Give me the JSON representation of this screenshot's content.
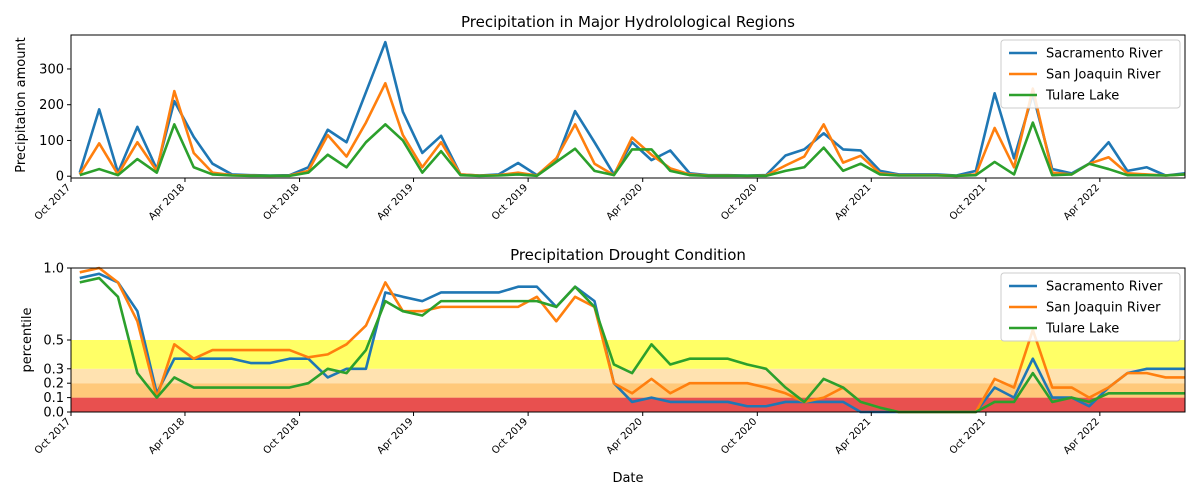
{
  "chart_data": [
    {
      "type": "line",
      "title": "Precipitation in Major Hydrolological Regions",
      "xlabel": "",
      "ylabel": "Precipitation amount",
      "ylim": [
        -5,
        395
      ],
      "xlim": [
        "2017-10-01",
        "2022-08-15"
      ],
      "x_ticks": [
        {
          "date": "2017-10-01",
          "label": "Oct 2017"
        },
        {
          "date": "2018-04-01",
          "label": "Apr 2018"
        },
        {
          "date": "2018-10-01",
          "label": "Oct 2018"
        },
        {
          "date": "2019-04-01",
          "label": "Apr 2019"
        },
        {
          "date": "2019-10-01",
          "label": "Oct 2019"
        },
        {
          "date": "2020-04-01",
          "label": "Apr 2020"
        },
        {
          "date": "2020-10-01",
          "label": "Oct 2020"
        },
        {
          "date": "2021-04-01",
          "label": "Apr 2021"
        },
        {
          "date": "2021-10-01",
          "label": "Oct 2021"
        },
        {
          "date": "2022-04-01",
          "label": "Apr 2022"
        }
      ],
      "y_ticks": [
        0,
        100,
        200,
        300
      ],
      "grid": false,
      "legend": "top-right",
      "x": [
        "2017-10",
        "2017-11",
        "2017-12",
        "2018-01",
        "2018-02",
        "2018-03",
        "2018-04",
        "2018-05",
        "2018-06",
        "2018-07",
        "2018-08",
        "2018-09",
        "2018-10",
        "2018-11",
        "2018-12",
        "2019-01",
        "2019-02",
        "2019-03",
        "2019-04",
        "2019-05",
        "2019-06",
        "2019-07",
        "2019-08",
        "2019-09",
        "2019-10",
        "2019-11",
        "2019-12",
        "2020-01",
        "2020-02",
        "2020-03",
        "2020-04",
        "2020-05",
        "2020-06",
        "2020-07",
        "2020-08",
        "2020-09",
        "2020-10",
        "2020-11",
        "2020-12",
        "2021-01",
        "2021-02",
        "2021-03",
        "2021-04",
        "2021-05",
        "2021-06",
        "2021-07",
        "2021-08",
        "2021-09",
        "2021-10",
        "2021-11",
        "2021-12",
        "2022-01",
        "2022-02",
        "2022-03",
        "2022-04",
        "2022-05",
        "2022-06",
        "2022-07",
        "2022-08"
      ],
      "series": [
        {
          "name": "Sacramento River",
          "color": "#1f77b4",
          "values": [
            10,
            187,
            10,
            138,
            20,
            210,
            110,
            35,
            5,
            3,
            2,
            3,
            25,
            130,
            95,
            235,
            375,
            180,
            65,
            113,
            5,
            2,
            5,
            37,
            3,
            45,
            182,
            95,
            5,
            95,
            45,
            72,
            8,
            3,
            3,
            2,
            3,
            58,
            75,
            120,
            75,
            72,
            15,
            5,
            5,
            5,
            2,
            15,
            232,
            50,
            230,
            20,
            8,
            35,
            95,
            15,
            25,
            2,
            8
          ]
        },
        {
          "name": "San Joaquin River",
          "color": "#ff7f0e",
          "values": [
            5,
            92,
            5,
            95,
            15,
            238,
            65,
            10,
            3,
            2,
            1,
            2,
            15,
            115,
            55,
            150,
            260,
            115,
            25,
            95,
            5,
            2,
            3,
            10,
            2,
            50,
            145,
            35,
            3,
            108,
            60,
            22,
            5,
            2,
            2,
            1,
            2,
            30,
            55,
            145,
            38,
            57,
            8,
            3,
            3,
            3,
            1,
            5,
            135,
            25,
            245,
            10,
            5,
            35,
            53,
            8,
            5,
            2,
            5
          ]
        },
        {
          "name": "Tulare Lake",
          "color": "#2ca02c",
          "values": [
            3,
            20,
            3,
            48,
            10,
            145,
            25,
            5,
            2,
            1,
            1,
            1,
            10,
            60,
            25,
            95,
            145,
            100,
            10,
            70,
            3,
            1,
            2,
            5,
            1,
            40,
            77,
            15,
            3,
            75,
            75,
            15,
            3,
            1,
            1,
            1,
            1,
            15,
            25,
            80,
            15,
            35,
            5,
            2,
            2,
            2,
            1,
            3,
            40,
            5,
            150,
            3,
            5,
            35,
            20,
            3,
            3,
            2,
            5
          ]
        }
      ]
    },
    {
      "type": "line",
      "title": "Precipitation Drought Condition",
      "xlabel": "Date",
      "ylabel": "percentile",
      "ylim": [
        0,
        1.0
      ],
      "xlim": [
        "2017-10-01",
        "2022-08-15"
      ],
      "x_ticks": [
        {
          "date": "2017-10-01",
          "label": "Oct 2017"
        },
        {
          "date": "2018-04-01",
          "label": "Apr 2018"
        },
        {
          "date": "2018-10-01",
          "label": "Oct 2018"
        },
        {
          "date": "2019-04-01",
          "label": "Apr 2019"
        },
        {
          "date": "2019-10-01",
          "label": "Oct 2019"
        },
        {
          "date": "2020-04-01",
          "label": "Apr 2020"
        },
        {
          "date": "2020-10-01",
          "label": "Oct 2020"
        },
        {
          "date": "2021-04-01",
          "label": "Apr 2021"
        },
        {
          "date": "2021-10-01",
          "label": "Oct 2021"
        },
        {
          "date": "2022-04-01",
          "label": "Apr 2022"
        }
      ],
      "y_ticks": [
        {
          "value": 0.0,
          "label": "0.0"
        },
        {
          "value": 0.1,
          "label": "0.1"
        },
        {
          "value": 0.2,
          "label": "0.2"
        },
        {
          "value": 0.3,
          "label": "0.3"
        },
        {
          "value": 0.5,
          "label": "0.5"
        },
        {
          "value": 1.0,
          "label": "1.0"
        }
      ],
      "bands": [
        {
          "from": 0.0,
          "to": 0.1,
          "color": "#e8504f"
        },
        {
          "from": 0.1,
          "to": 0.2,
          "color": "#ffc97a"
        },
        {
          "from": 0.2,
          "to": 0.3,
          "color": "#ffe2b0"
        },
        {
          "from": 0.3,
          "to": 0.5,
          "color": "#ffff66"
        }
      ],
      "grid": false,
      "legend": "top-right",
      "x": [
        "2017-10",
        "2017-11",
        "2017-12",
        "2018-01",
        "2018-02",
        "2018-03",
        "2018-04",
        "2018-05",
        "2018-06",
        "2018-07",
        "2018-08",
        "2018-09",
        "2018-10",
        "2018-11",
        "2018-12",
        "2019-01",
        "2019-02",
        "2019-03",
        "2019-04",
        "2019-05",
        "2019-06",
        "2019-07",
        "2019-08",
        "2019-09",
        "2019-10",
        "2019-11",
        "2019-12",
        "2020-01",
        "2020-02",
        "2020-03",
        "2020-04",
        "2020-05",
        "2020-06",
        "2020-07",
        "2020-08",
        "2020-09",
        "2020-10",
        "2020-11",
        "2020-12",
        "2021-01",
        "2021-02",
        "2021-03",
        "2021-04",
        "2021-05",
        "2021-06",
        "2021-07",
        "2021-08",
        "2021-09",
        "2021-10",
        "2021-11",
        "2021-12",
        "2022-01",
        "2022-02",
        "2022-03",
        "2022-04",
        "2022-05",
        "2022-06",
        "2022-07",
        "2022-08"
      ],
      "series": [
        {
          "name": "Sacramento River",
          "color": "#1f77b4",
          "values": [
            0.93,
            0.96,
            0.9,
            0.7,
            0.13,
            0.37,
            0.37,
            0.37,
            0.37,
            0.34,
            0.34,
            0.37,
            0.37,
            0.24,
            0.3,
            0.3,
            0.83,
            0.8,
            0.77,
            0.83,
            0.83,
            0.83,
            0.83,
            0.87,
            0.87,
            0.73,
            0.87,
            0.77,
            0.2,
            0.07,
            0.1,
            0.07,
            0.07,
            0.07,
            0.07,
            0.04,
            0.04,
            0.07,
            0.07,
            0.07,
            0.07,
            0.0,
            0.0,
            0.0,
            0.0,
            0.0,
            0.0,
            0.0,
            0.17,
            0.1,
            0.37,
            0.1,
            0.1,
            0.04,
            0.17,
            0.27,
            0.3,
            0.3,
            0.3
          ]
        },
        {
          "name": "San Joaquin River",
          "color": "#ff7f0e",
          "values": [
            0.97,
            1.0,
            0.9,
            0.63,
            0.1,
            0.47,
            0.37,
            0.43,
            0.43,
            0.43,
            0.43,
            0.43,
            0.38,
            0.4,
            0.47,
            0.6,
            0.9,
            0.7,
            0.7,
            0.73,
            0.73,
            0.73,
            0.73,
            0.73,
            0.8,
            0.63,
            0.8,
            0.73,
            0.2,
            0.13,
            0.23,
            0.13,
            0.2,
            0.2,
            0.2,
            0.2,
            0.17,
            0.13,
            0.07,
            0.1,
            0.17,
            0.07,
            0.03,
            0.0,
            0.0,
            0.0,
            0.0,
            0.0,
            0.23,
            0.17,
            0.57,
            0.17,
            0.17,
            0.1,
            0.17,
            0.27,
            0.27,
            0.24,
            0.24
          ]
        },
        {
          "name": "Tulare Lake",
          "color": "#2ca02c",
          "values": [
            0.9,
            0.93,
            0.8,
            0.27,
            0.1,
            0.24,
            0.17,
            0.17,
            0.17,
            0.17,
            0.17,
            0.17,
            0.2,
            0.3,
            0.27,
            0.43,
            0.77,
            0.7,
            0.67,
            0.77,
            0.77,
            0.77,
            0.77,
            0.77,
            0.77,
            0.73,
            0.87,
            0.73,
            0.33,
            0.27,
            0.47,
            0.33,
            0.37,
            0.37,
            0.37,
            0.33,
            0.3,
            0.17,
            0.07,
            0.23,
            0.17,
            0.07,
            0.03,
            0.0,
            0.0,
            0.0,
            0.0,
            0.0,
            0.07,
            0.07,
            0.27,
            0.07,
            0.1,
            0.07,
            0.13,
            0.13,
            0.13,
            0.13,
            0.13
          ]
        }
      ]
    }
  ]
}
